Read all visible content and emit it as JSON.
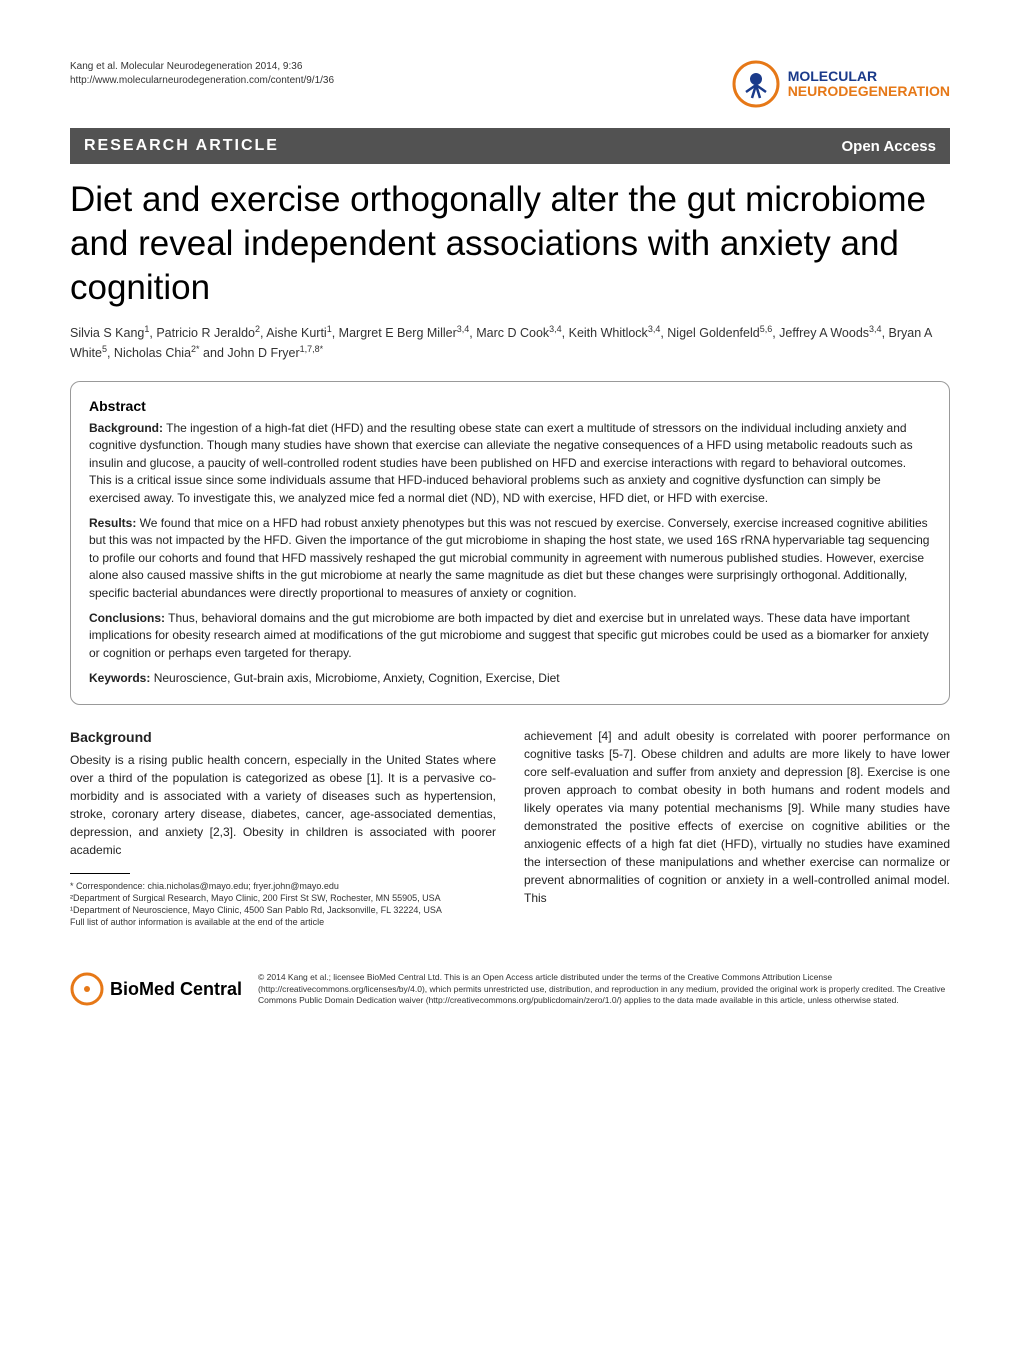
{
  "header": {
    "citation_line1": "Kang et al. Molecular Neurodegeneration 2014, 9:36",
    "citation_line2": "http://www.molecularneurodegeneration.com/content/9/1/36",
    "journal_line1": "MOLECULAR",
    "journal_line2": "NEURODEGENERATION",
    "logo_circle_color": "#e67817",
    "logo_head_color": "#1a3a8a"
  },
  "article_bar": {
    "type_label": "RESEARCH ARTICLE",
    "open_access_label": "Open Access",
    "bar_bg": "#525252",
    "bar_fg": "#ffffff"
  },
  "title": "Diet and exercise orthogonally alter the gut microbiome and reveal independent associations with anxiety and cognition",
  "authors_html": "Silvia S Kang<sup>1</sup>, Patricio R Jeraldo<sup>2</sup>, Aishe Kurti<sup>1</sup>, Margret E Berg Miller<sup>3,4</sup>, Marc D Cook<sup>3,4</sup>, Keith Whitlock<sup>3,4</sup>, Nigel Goldenfeld<sup>5,6</sup>, Jeffrey A Woods<sup>3,4</sup>, Bryan A White<sup>5</sup>, Nicholas Chia<sup>2*</sup> and John D Fryer<sup>1,7,8*</sup>",
  "abstract": {
    "heading": "Abstract",
    "background_label": "Background:",
    "background_text": " The ingestion of a high-fat diet (HFD) and the resulting obese state can exert a multitude of stressors on the individual including anxiety and cognitive dysfunction. Though many studies have shown that exercise can alleviate the negative consequences of a HFD using metabolic readouts such as insulin and glucose, a paucity of well-controlled rodent studies have been published on HFD and exercise interactions with regard to behavioral outcomes. This is a critical issue since some individuals assume that HFD-induced behavioral problems such as anxiety and cognitive dysfunction can simply be exercised away. To investigate this, we analyzed mice fed a normal diet (ND), ND with exercise, HFD diet, or HFD with exercise.",
    "results_label": "Results:",
    "results_text": " We found that mice on a HFD had robust anxiety phenotypes but this was not rescued by exercise. Conversely, exercise increased cognitive abilities but this was not impacted by the HFD. Given the importance of the gut microbiome in shaping the host state, we used 16S rRNA hypervariable tag sequencing to profile our cohorts and found that HFD massively reshaped the gut microbial community in agreement with numerous published studies. However, exercise alone also caused massive shifts in the gut microbiome at nearly the same magnitude as diet but these changes were surprisingly orthogonal. Additionally, specific bacterial abundances were directly proportional to measures of anxiety or cognition.",
    "conclusions_label": "Conclusions:",
    "conclusions_text": " Thus, behavioral domains and the gut microbiome are both impacted by diet and exercise but in unrelated ways. These data have important implications for obesity research aimed at modifications of the gut microbiome and suggest that specific gut microbes could be used as a biomarker for anxiety or cognition or perhaps even targeted for therapy.",
    "keywords_label": "Keywords:",
    "keywords_text": " Neuroscience, Gut-brain axis, Microbiome, Anxiety, Cognition, Exercise, Diet"
  },
  "body": {
    "background_heading": "Background",
    "left_col_text": "Obesity is a rising public health concern, especially in the United States where over a third of the population is categorized as obese [1]. It is a pervasive co-morbidity and is associated with a variety of diseases such as hypertension, stroke, coronary artery disease, diabetes, cancer, age-associated dementias, depression, and anxiety [2,3]. Obesity in children is associated with poorer academic",
    "right_col_text": "achievement [4] and adult obesity is correlated with poorer performance on cognitive tasks [5-7]. Obese children and adults are more likely to have lower core self-evaluation and suffer from anxiety and depression [8]. Exercise is one proven approach to combat obesity in both humans and rodent models and likely operates via many potential mechanisms [9]. While many studies have demonstrated the positive effects of exercise on cognitive abilities or the anxiogenic effects of a high fat diet (HFD), virtually no studies have examined the intersection of these manipulations and whether exercise can normalize or prevent abnormalities of cognition or anxiety in a well-controlled animal model. This"
  },
  "footnotes": {
    "line1": "* Correspondence: chia.nicholas@mayo.edu; fryer.john@mayo.edu",
    "line2": "²Department of Surgical Research, Mayo Clinic, 200 First St SW, Rochester, MN 55905, USA",
    "line3": "¹Department of Neuroscience, Mayo Clinic, 4500 San Pablo Rd, Jacksonville, FL 32224, USA",
    "line4": "Full list of author information is available at the end of the article"
  },
  "footer": {
    "bmc_label": "BioMed Central",
    "bmc_orange": "#e67817",
    "license_text": "© 2014 Kang et al.; licensee BioMed Central Ltd. This is an Open Access article distributed under the terms of the Creative Commons Attribution License (http://creativecommons.org/licenses/by/4.0), which permits unrestricted use, distribution, and reproduction in any medium, provided the original work is properly credited. The Creative Commons Public Domain Dedication waiver (http://creativecommons.org/publicdomain/zero/1.0/) applies to the data made available in this article, unless otherwise stated."
  },
  "colors": {
    "text": "#000000",
    "muted": "#333333",
    "border": "#999999",
    "orange": "#e67817",
    "blue": "#1a3a8a"
  },
  "typography": {
    "title_fontsize": 35,
    "body_fontsize": 12,
    "abstract_fontsize": 12,
    "footnote_fontsize": 9,
    "license_fontsize": 8.5
  }
}
